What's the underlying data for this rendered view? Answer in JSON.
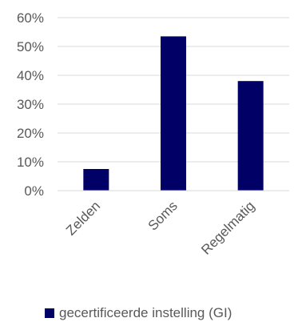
{
  "chart_data": {
    "type": "bar",
    "categories": [
      "Zelden",
      "Soms",
      "Regelmatig"
    ],
    "series": [
      {
        "name": "gecertificeerde instelling (GI)",
        "values": [
          0.075,
          0.535,
          0.38
        ],
        "color": "#000066"
      }
    ],
    "ylim": [
      0,
      0.6
    ],
    "yticks": [
      0,
      0.1,
      0.2,
      0.3,
      0.4,
      0.5,
      0.6
    ],
    "ytick_labels": [
      "0%",
      "10%",
      "20%",
      "30%",
      "40%",
      "50%",
      "60%"
    ],
    "grid": true,
    "legend_position": "bottom"
  }
}
